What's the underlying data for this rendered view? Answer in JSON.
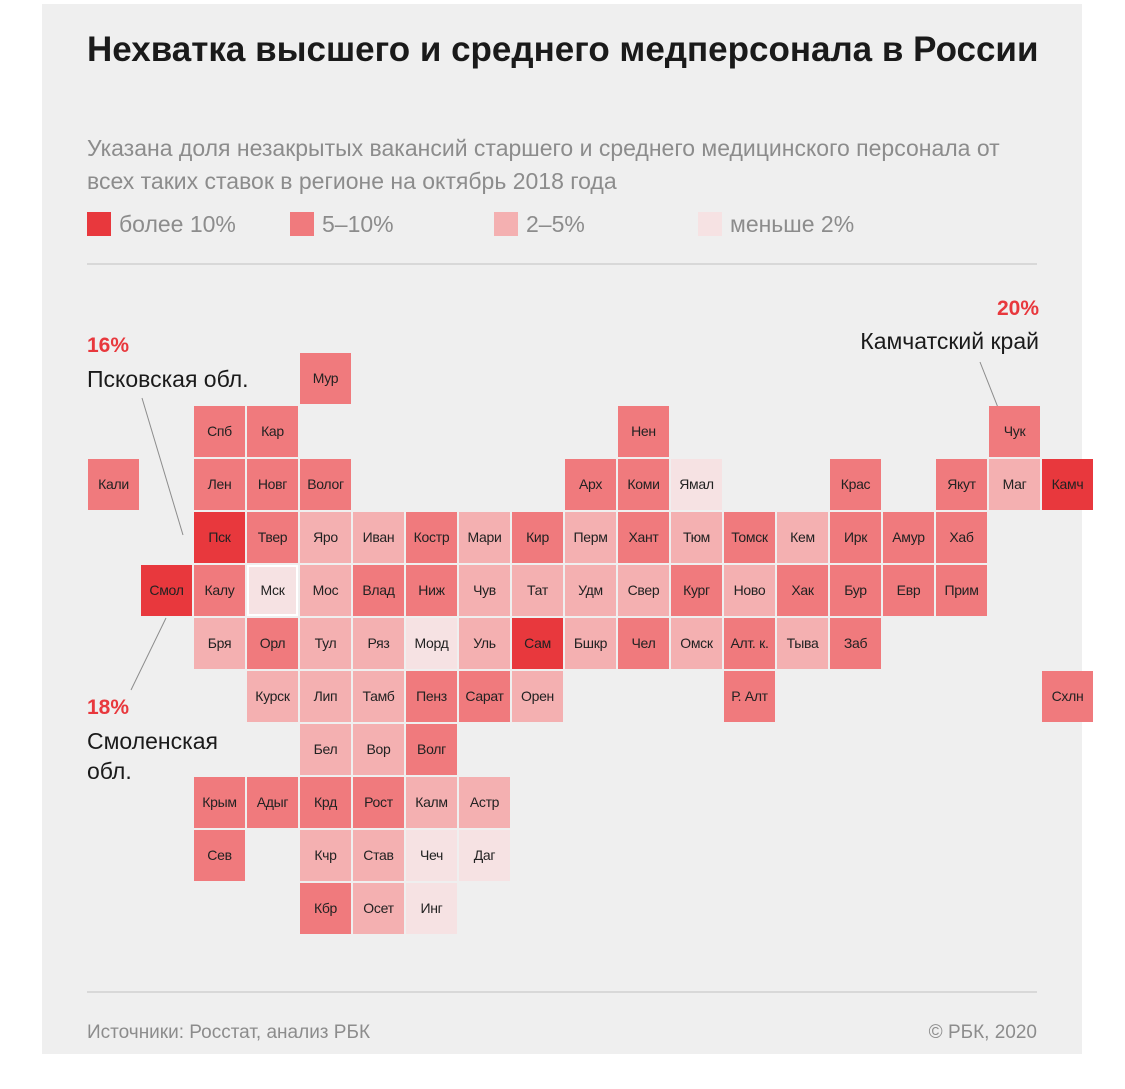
{
  "title": "Нехватка высшего и среднего медперсонала в России",
  "subtitle": "Указана доля незакрытых вакансий старшего и среднего медицинского персонала от всех таких ставок в регионе на октябрь 2018 года",
  "colors": {
    "over10": "#e8383d",
    "5to10": "#f07a7d",
    "2to5": "#f4b0b1",
    "under2": "#f6e2e3",
    "highlight": "#e8383d",
    "text": "#1a1a1a",
    "muted": "#8c8c8c"
  },
  "legend": [
    {
      "key": "over10",
      "label": "более 10%"
    },
    {
      "key": "5to10",
      "label": "5–10%"
    },
    {
      "key": "2to5",
      "label": "2–5%"
    },
    {
      "key": "under2",
      "label": "меньше 2%"
    }
  ],
  "annotations": {
    "pskov": {
      "pct": "16%",
      "name": "Псковская обл."
    },
    "smolensk": {
      "pct": "18%",
      "name": "Смоленская обл."
    },
    "kamchatka": {
      "pct": "20%",
      "name": "Камчатский край"
    }
  },
  "regions": [
    {
      "label": "Мур",
      "col": 4,
      "row": 0,
      "cat": "5to10"
    },
    {
      "label": "Спб",
      "col": 2,
      "row": 1,
      "cat": "5to10"
    },
    {
      "label": "Кар",
      "col": 3,
      "row": 1,
      "cat": "5to10"
    },
    {
      "label": "Нен",
      "col": 10,
      "row": 1,
      "cat": "5to10"
    },
    {
      "label": "Чук",
      "col": 17,
      "row": 1,
      "cat": "5to10"
    },
    {
      "label": "Кали",
      "col": 0,
      "row": 2,
      "cat": "5to10"
    },
    {
      "label": "Лен",
      "col": 2,
      "row": 2,
      "cat": "5to10"
    },
    {
      "label": "Новг",
      "col": 3,
      "row": 2,
      "cat": "5to10"
    },
    {
      "label": "Волог",
      "col": 4,
      "row": 2,
      "cat": "5to10"
    },
    {
      "label": "Арх",
      "col": 9,
      "row": 2,
      "cat": "5to10"
    },
    {
      "label": "Коми",
      "col": 10,
      "row": 2,
      "cat": "5to10"
    },
    {
      "label": "Ямал",
      "col": 11,
      "row": 2,
      "cat": "under2"
    },
    {
      "label": "Крас",
      "col": 14,
      "row": 2,
      "cat": "5to10"
    },
    {
      "label": "Якут",
      "col": 16,
      "row": 2,
      "cat": "5to10"
    },
    {
      "label": "Маг",
      "col": 17,
      "row": 2,
      "cat": "2to5"
    },
    {
      "label": "Камч",
      "col": 18,
      "row": 2,
      "cat": "over10"
    },
    {
      "label": "Пск",
      "col": 2,
      "row": 3,
      "cat": "over10"
    },
    {
      "label": "Твер",
      "col": 3,
      "row": 3,
      "cat": "5to10"
    },
    {
      "label": "Яро",
      "col": 4,
      "row": 3,
      "cat": "2to5"
    },
    {
      "label": "Иван",
      "col": 5,
      "row": 3,
      "cat": "2to5"
    },
    {
      "label": "Костр",
      "col": 6,
      "row": 3,
      "cat": "5to10"
    },
    {
      "label": "Мари",
      "col": 7,
      "row": 3,
      "cat": "2to5"
    },
    {
      "label": "Кир",
      "col": 8,
      "row": 3,
      "cat": "5to10"
    },
    {
      "label": "Перм",
      "col": 9,
      "row": 3,
      "cat": "2to5"
    },
    {
      "label": "Хант",
      "col": 10,
      "row": 3,
      "cat": "5to10"
    },
    {
      "label": "Тюм",
      "col": 11,
      "row": 3,
      "cat": "2to5"
    },
    {
      "label": "Томск",
      "col": 12,
      "row": 3,
      "cat": "5to10"
    },
    {
      "label": "Кем",
      "col": 13,
      "row": 3,
      "cat": "2to5"
    },
    {
      "label": "Ирк",
      "col": 14,
      "row": 3,
      "cat": "5to10"
    },
    {
      "label": "Амур",
      "col": 15,
      "row": 3,
      "cat": "5to10"
    },
    {
      "label": "Хаб",
      "col": 16,
      "row": 3,
      "cat": "5to10"
    },
    {
      "label": "Смол",
      "col": 1,
      "row": 4,
      "cat": "over10"
    },
    {
      "label": "Калу",
      "col": 2,
      "row": 4,
      "cat": "5to10"
    },
    {
      "label": "Мск",
      "col": 3,
      "row": 4,
      "cat": "under2"
    },
    {
      "label": "Мос",
      "col": 4,
      "row": 4,
      "cat": "2to5"
    },
    {
      "label": "Влад",
      "col": 5,
      "row": 4,
      "cat": "5to10"
    },
    {
      "label": "Ниж",
      "col": 6,
      "row": 4,
      "cat": "5to10"
    },
    {
      "label": "Чув",
      "col": 7,
      "row": 4,
      "cat": "2to5"
    },
    {
      "label": "Тат",
      "col": 8,
      "row": 4,
      "cat": "2to5"
    },
    {
      "label": "Удм",
      "col": 9,
      "row": 4,
      "cat": "2to5"
    },
    {
      "label": "Свер",
      "col": 10,
      "row": 4,
      "cat": "2to5"
    },
    {
      "label": "Кург",
      "col": 11,
      "row": 4,
      "cat": "5to10"
    },
    {
      "label": "Ново",
      "col": 12,
      "row": 4,
      "cat": "2to5"
    },
    {
      "label": "Хак",
      "col": 13,
      "row": 4,
      "cat": "5to10"
    },
    {
      "label": "Бур",
      "col": 14,
      "row": 4,
      "cat": "5to10"
    },
    {
      "label": "Евр",
      "col": 15,
      "row": 4,
      "cat": "5to10"
    },
    {
      "label": "Прим",
      "col": 16,
      "row": 4,
      "cat": "5to10"
    },
    {
      "label": "Бря",
      "col": 2,
      "row": 5,
      "cat": "2to5"
    },
    {
      "label": "Орл",
      "col": 3,
      "row": 5,
      "cat": "5to10"
    },
    {
      "label": "Тул",
      "col": 4,
      "row": 5,
      "cat": "2to5"
    },
    {
      "label": "Ряз",
      "col": 5,
      "row": 5,
      "cat": "2to5"
    },
    {
      "label": "Морд",
      "col": 6,
      "row": 5,
      "cat": "under2"
    },
    {
      "label": "Уль",
      "col": 7,
      "row": 5,
      "cat": "2to5"
    },
    {
      "label": "Сам",
      "col": 8,
      "row": 5,
      "cat": "over10"
    },
    {
      "label": "Бшкр",
      "col": 9,
      "row": 5,
      "cat": "2to5"
    },
    {
      "label": "Чел",
      "col": 10,
      "row": 5,
      "cat": "5to10"
    },
    {
      "label": "Омск",
      "col": 11,
      "row": 5,
      "cat": "2to5"
    },
    {
      "label": "Алт. к.",
      "col": 12,
      "row": 5,
      "cat": "5to10"
    },
    {
      "label": "Тыва",
      "col": 13,
      "row": 5,
      "cat": "2to5"
    },
    {
      "label": "Заб",
      "col": 14,
      "row": 5,
      "cat": "5to10"
    },
    {
      "label": "Курск",
      "col": 3,
      "row": 6,
      "cat": "2to5"
    },
    {
      "label": "Лип",
      "col": 4,
      "row": 6,
      "cat": "2to5"
    },
    {
      "label": "Тамб",
      "col": 5,
      "row": 6,
      "cat": "2to5"
    },
    {
      "label": "Пенз",
      "col": 6,
      "row": 6,
      "cat": "5to10"
    },
    {
      "label": "Сарат",
      "col": 7,
      "row": 6,
      "cat": "5to10"
    },
    {
      "label": "Орен",
      "col": 8,
      "row": 6,
      "cat": "2to5"
    },
    {
      "label": "Р. Алт",
      "col": 12,
      "row": 6,
      "cat": "5to10"
    },
    {
      "label": "Схлн",
      "col": 18,
      "row": 6,
      "cat": "5to10"
    },
    {
      "label": "Бел",
      "col": 4,
      "row": 7,
      "cat": "2to5"
    },
    {
      "label": "Вор",
      "col": 5,
      "row": 7,
      "cat": "2to5"
    },
    {
      "label": "Волг",
      "col": 6,
      "row": 7,
      "cat": "5to10"
    },
    {
      "label": "Крым",
      "col": 2,
      "row": 8,
      "cat": "5to10"
    },
    {
      "label": "Адыг",
      "col": 3,
      "row": 8,
      "cat": "5to10"
    },
    {
      "label": "Крд",
      "col": 4,
      "row": 8,
      "cat": "5to10"
    },
    {
      "label": "Рост",
      "col": 5,
      "row": 8,
      "cat": "5to10"
    },
    {
      "label": "Калм",
      "col": 6,
      "row": 8,
      "cat": "2to5"
    },
    {
      "label": "Астр",
      "col": 7,
      "row": 8,
      "cat": "2to5"
    },
    {
      "label": "Сев",
      "col": 2,
      "row": 9,
      "cat": "5to10"
    },
    {
      "label": "Кчр",
      "col": 4,
      "row": 9,
      "cat": "2to5"
    },
    {
      "label": "Став",
      "col": 5,
      "row": 9,
      "cat": "2to5"
    },
    {
      "label": "Чеч",
      "col": 6,
      "row": 9,
      "cat": "under2"
    },
    {
      "label": "Даг",
      "col": 7,
      "row": 9,
      "cat": "under2"
    },
    {
      "label": "Кбр",
      "col": 4,
      "row": 10,
      "cat": "5to10"
    },
    {
      "label": "Осет",
      "col": 5,
      "row": 10,
      "cat": "2to5"
    },
    {
      "label": "Инг",
      "col": 6,
      "row": 10,
      "cat": "under2"
    }
  ],
  "footer": {
    "source": "Источники: Росстат, анализ РБК",
    "copyright": "© РБК, 2020"
  }
}
